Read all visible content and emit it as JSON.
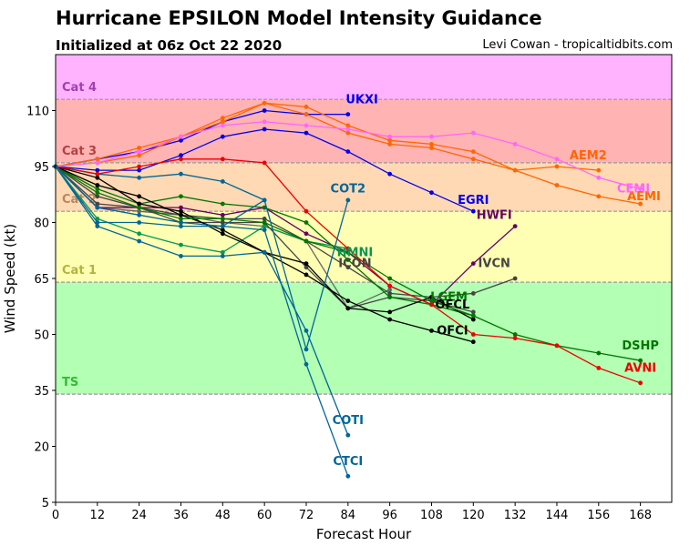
{
  "header": {
    "title": "Hurricane EPSILON Model Intensity Guidance",
    "subtitle": "Initialized at 06z Oct 22 2020",
    "credit": "Levi Cowan - tropicaltidbits.com"
  },
  "chart_data": {
    "type": "line",
    "xlabel": "Forecast Hour",
    "ylabel": "Wind Speed (kt)",
    "xlim": [
      0,
      177
    ],
    "ylim": [
      5,
      125
    ],
    "xticks": [
      0,
      12,
      24,
      36,
      48,
      60,
      72,
      84,
      96,
      108,
      120,
      132,
      144,
      156,
      168
    ],
    "yticks": [
      5,
      20,
      35,
      50,
      65,
      80,
      95,
      110
    ],
    "bands": [
      {
        "label": "TS",
        "from": 34,
        "to": 64,
        "color": "#b3ffb3",
        "labelColor": "#33bb33"
      },
      {
        "label": "Cat 1",
        "from": 64,
        "to": 83,
        "color": "#ffffb3",
        "labelColor": "#b3b340"
      },
      {
        "label": "Cat 2",
        "from": 83,
        "to": 96,
        "color": "#ffd9b3",
        "labelColor": "#b38a60"
      },
      {
        "label": "Cat 3",
        "from": 96,
        "to": 113,
        "color": "#ffb3b3",
        "labelColor": "#b34040"
      },
      {
        "label": "Cat 4",
        "from": 113,
        "to": 125,
        "color": "#ffb3ff",
        "labelColor": "#a040b0"
      }
    ],
    "series": [
      {
        "name": "UKXI",
        "color": "#0000ee",
        "label_x": 88,
        "label_y": 112,
        "x": [
          0,
          12,
          24,
          36,
          48,
          60,
          72,
          84
        ],
        "y": [
          95,
          97,
          99,
          102,
          107,
          110,
          109,
          109
        ]
      },
      {
        "name": "EGRI",
        "color": "#0000ee",
        "label_x": 120,
        "label_y": 85,
        "x": [
          0,
          12,
          24,
          36,
          48,
          60,
          72,
          84,
          96,
          108,
          120
        ],
        "y": [
          95,
          94,
          94,
          98,
          103,
          105,
          104,
          99,
          93,
          88,
          83
        ]
      },
      {
        "name": "AEM2",
        "color": "#ff6600",
        "label_x": 153,
        "label_y": 97,
        "x": [
          0,
          12,
          24,
          36,
          48,
          60,
          72,
          84,
          96,
          108,
          120,
          132,
          144,
          156
        ],
        "y": [
          95,
          96,
          98,
          103,
          108,
          112,
          111,
          106,
          102,
          101,
          99,
          94,
          95,
          94
        ]
      },
      {
        "name": "AEMI",
        "color": "#ff6600",
        "label_x": 169,
        "label_y": 86,
        "x": [
          0,
          12,
          24,
          36,
          48,
          60,
          72,
          84,
          96,
          108,
          120,
          132,
          144,
          156,
          168
        ],
        "y": [
          95,
          97,
          100,
          103,
          107,
          112,
          109,
          104,
          101,
          100,
          97,
          94,
          90,
          87,
          85
        ]
      },
      {
        "name": "CEMI",
        "color": "#ff66ff",
        "label_x": 166,
        "label_y": 88,
        "x": [
          0,
          12,
          24,
          36,
          48,
          60,
          72,
          84,
          96,
          108,
          120,
          132,
          144,
          156,
          168
        ],
        "y": [
          95,
          96,
          99,
          103,
          106,
          107,
          106,
          105,
          103,
          103,
          104,
          101,
          97,
          92,
          89
        ]
      },
      {
        "name": "HWFI",
        "color": "#660066",
        "label_x": 126,
        "label_y": 81,
        "x": [
          0,
          12,
          24,
          36,
          48,
          60,
          72,
          84,
          96,
          108,
          120,
          132
        ],
        "y": [
          95,
          84,
          84,
          84,
          82,
          84,
          77,
          72,
          63,
          58,
          69,
          79
        ]
      },
      {
        "name": "IVCN",
        "color": "#444444",
        "label_x": 126,
        "label_y": 68,
        "x": [
          0,
          12,
          24,
          36,
          48,
          60,
          72,
          84,
          96,
          108,
          120,
          132
        ],
        "y": [
          95,
          85,
          84,
          82,
          81,
          81,
          75,
          68,
          61,
          60,
          61,
          65
        ]
      },
      {
        "name": "HMNI",
        "color": "#009955",
        "label_x": 86,
        "label_y": 71,
        "x": [
          0,
          12,
          24,
          36,
          48,
          60,
          72,
          84
        ],
        "y": [
          95,
          81,
          77,
          74,
          72,
          79,
          75,
          73
        ]
      },
      {
        "name": "ICON",
        "color": "#444444",
        "label_x": 86,
        "label_y": 68,
        "x": [
          0,
          12,
          24,
          36,
          48,
          60,
          72,
          84,
          96,
          108,
          120
        ],
        "y": [
          95,
          87,
          84,
          80,
          80,
          80,
          68,
          57,
          60,
          59,
          56
        ]
      },
      {
        "name": "LGEM",
        "color": "#007700",
        "label_x": 113,
        "label_y": 59,
        "x": [
          0,
          12,
          24,
          36,
          48,
          60,
          72,
          84,
          96,
          108,
          120
        ],
        "y": [
          95,
          89,
          85,
          87,
          85,
          84,
          80,
          70,
          60,
          58,
          55
        ]
      },
      {
        "name": "OFCL",
        "color": "#000000",
        "label_x": 114,
        "label_y": 57,
        "x": [
          0,
          12,
          24,
          36,
          48,
          60,
          72,
          84,
          96,
          108,
          120
        ],
        "y": [
          95,
          90,
          87,
          82,
          78,
          72,
          66,
          59,
          54,
          51,
          48
        ]
      },
      {
        "name": "OFCI",
        "color": "#000000",
        "label_x": 114,
        "label_y": 50,
        "x": [
          0,
          12,
          24,
          36,
          48,
          60,
          72,
          84,
          96,
          108,
          120
        ],
        "y": [
          95,
          92,
          85,
          83,
          77,
          72,
          69,
          57,
          56,
          60,
          54
        ]
      },
      {
        "name": "DSHP",
        "color": "#007700",
        "label_x": 168,
        "label_y": 46,
        "x": [
          0,
          12,
          24,
          36,
          48,
          60,
          72,
          84,
          96,
          108,
          120,
          132,
          144,
          156,
          168
        ],
        "y": [
          95,
          88,
          84,
          81,
          81,
          80,
          75,
          72,
          65,
          59,
          55,
          50,
          47,
          45,
          43
        ]
      },
      {
        "name": "AVNI",
        "color": "#ee0000",
        "label_x": 168,
        "label_y": 40,
        "x": [
          0,
          12,
          24,
          36,
          48,
          60,
          72,
          84,
          96,
          108,
          120,
          132,
          144,
          156,
          168
        ],
        "y": [
          95,
          93,
          95,
          97,
          97,
          96,
          83,
          73,
          63,
          58,
          50,
          49,
          47,
          41,
          37
        ]
      },
      {
        "name": "COT2",
        "color": "#006699",
        "label_x": 84,
        "label_y": 88,
        "x": [
          0,
          12,
          24,
          36,
          48,
          60,
          72,
          84
        ],
        "y": [
          95,
          80,
          80,
          79,
          79,
          86,
          46,
          86
        ]
      },
      {
        "name": "COTI",
        "color": "#006699",
        "label_x": 84,
        "label_y": 26,
        "x": [
          0,
          12,
          24,
          36,
          48,
          60,
          72,
          84
        ],
        "y": [
          95,
          79,
          75,
          71,
          71,
          72,
          51,
          23
        ]
      },
      {
        "name": "CTCI",
        "color": "#006699",
        "label_x": 84,
        "label_y": 15,
        "x": [
          0,
          12,
          24,
          36,
          48,
          60,
          72,
          84
        ],
        "y": [
          95,
          84,
          82,
          80,
          79,
          78,
          42,
          12
        ]
      }
    ],
    "extra_series": [
      {
        "color": "#006699",
        "x": [
          0,
          12,
          24,
          36,
          48,
          60
        ],
        "y": [
          95,
          93,
          92,
          93,
          91,
          86
        ]
      },
      {
        "color": "#666666",
        "x": [
          0,
          12,
          24,
          36,
          48,
          60,
          72,
          84,
          96
        ],
        "y": [
          95,
          84,
          83,
          82,
          80,
          79,
          75,
          57,
          62
        ]
      }
    ]
  }
}
